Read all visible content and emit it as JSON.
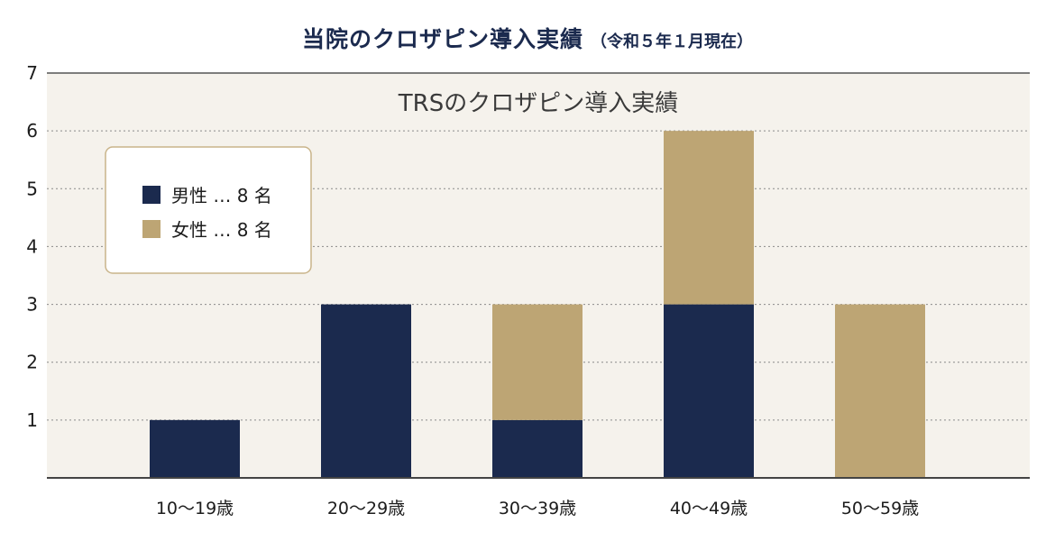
{
  "header": {
    "title": "当院のクロザピン導入実績",
    "subtitle": "（令和５年１月現在）"
  },
  "chart_data": {
    "type": "bar",
    "stacked": true,
    "title": "TRSのクロザピン導入実績",
    "categories": [
      "10～19歳",
      "20～29歳",
      "30～39歳",
      "40～49歳",
      "50～59歳"
    ],
    "series": [
      {
        "name": "男性",
        "values": [
          1,
          3,
          1,
          3,
          0
        ],
        "color": "#1b2a4e"
      },
      {
        "name": "女性",
        "values": [
          0,
          0,
          2,
          3,
          3
        ],
        "color": "#bda574"
      }
    ],
    "legend": [
      {
        "label": "男性 … 8 名",
        "color": "#1b2a4e"
      },
      {
        "label": "女性 … 8 名",
        "color": "#bda574"
      }
    ],
    "legend_position": "top-left",
    "y_ticks": [
      "1",
      "2",
      "3",
      "4",
      "5",
      "6",
      "7"
    ],
    "ylim": [
      0,
      7
    ],
    "grid": true,
    "plot_background": "#f5f2ec"
  }
}
